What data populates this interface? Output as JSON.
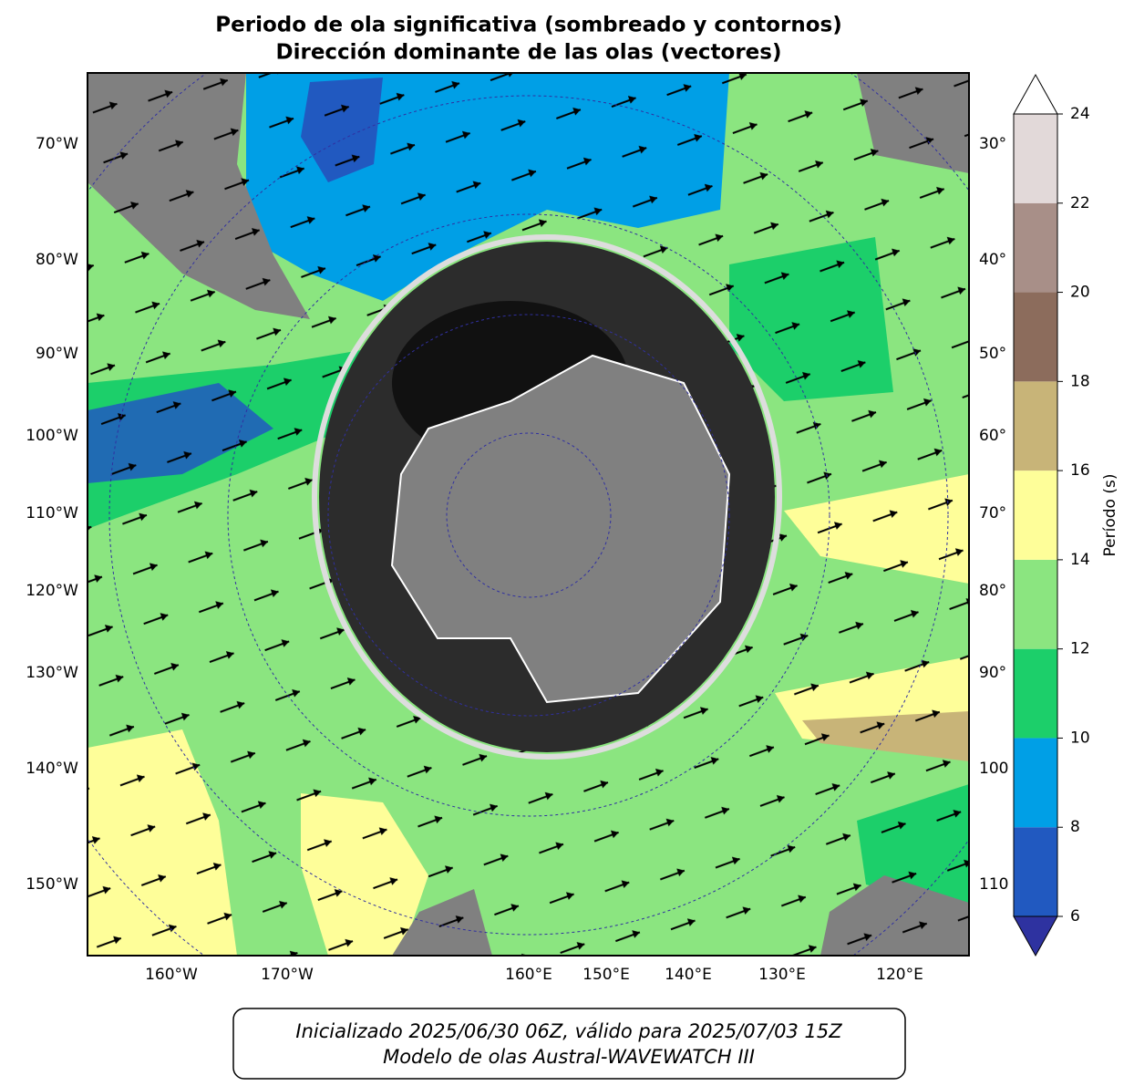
{
  "title": [
    "Periodo de ola significativa (sombreado y contornos)",
    "Dirección dominante de las olas (vectores)"
  ],
  "left_labels": [
    "70°W",
    "80°W",
    "90°W",
    "100°W",
    "110°W",
    "120°W",
    "130°W",
    "140°W",
    "150°W"
  ],
  "right_labels": [
    "30°",
    "40°",
    "50°",
    "60°",
    "70°",
    "80°",
    "90°",
    "100",
    "110"
  ],
  "bottom_labels": [
    "160°W",
    "170°W",
    "160°E",
    "150°E",
    "140°E",
    "130°E",
    "120°E"
  ],
  "colorbar": {
    "label": "Período (s)",
    "ticks": [
      6,
      8,
      10,
      12,
      14,
      16,
      18,
      20,
      22,
      24
    ],
    "colors": [
      "#2159c0",
      "#009fe6",
      "#1ccf6a",
      "#8be580",
      "#fefe99",
      "#c8b478",
      "#8c6c5c",
      "#a88f88",
      "#e2d9d9"
    ],
    "under_color": "#2e32a0",
    "over_color": "#ffffff"
  },
  "footer": [
    "Inicializado 2025/06/30 06Z, válido para 2025/07/03 15Z",
    "Modelo de olas Austral-WAVEWATCH III"
  ]
}
